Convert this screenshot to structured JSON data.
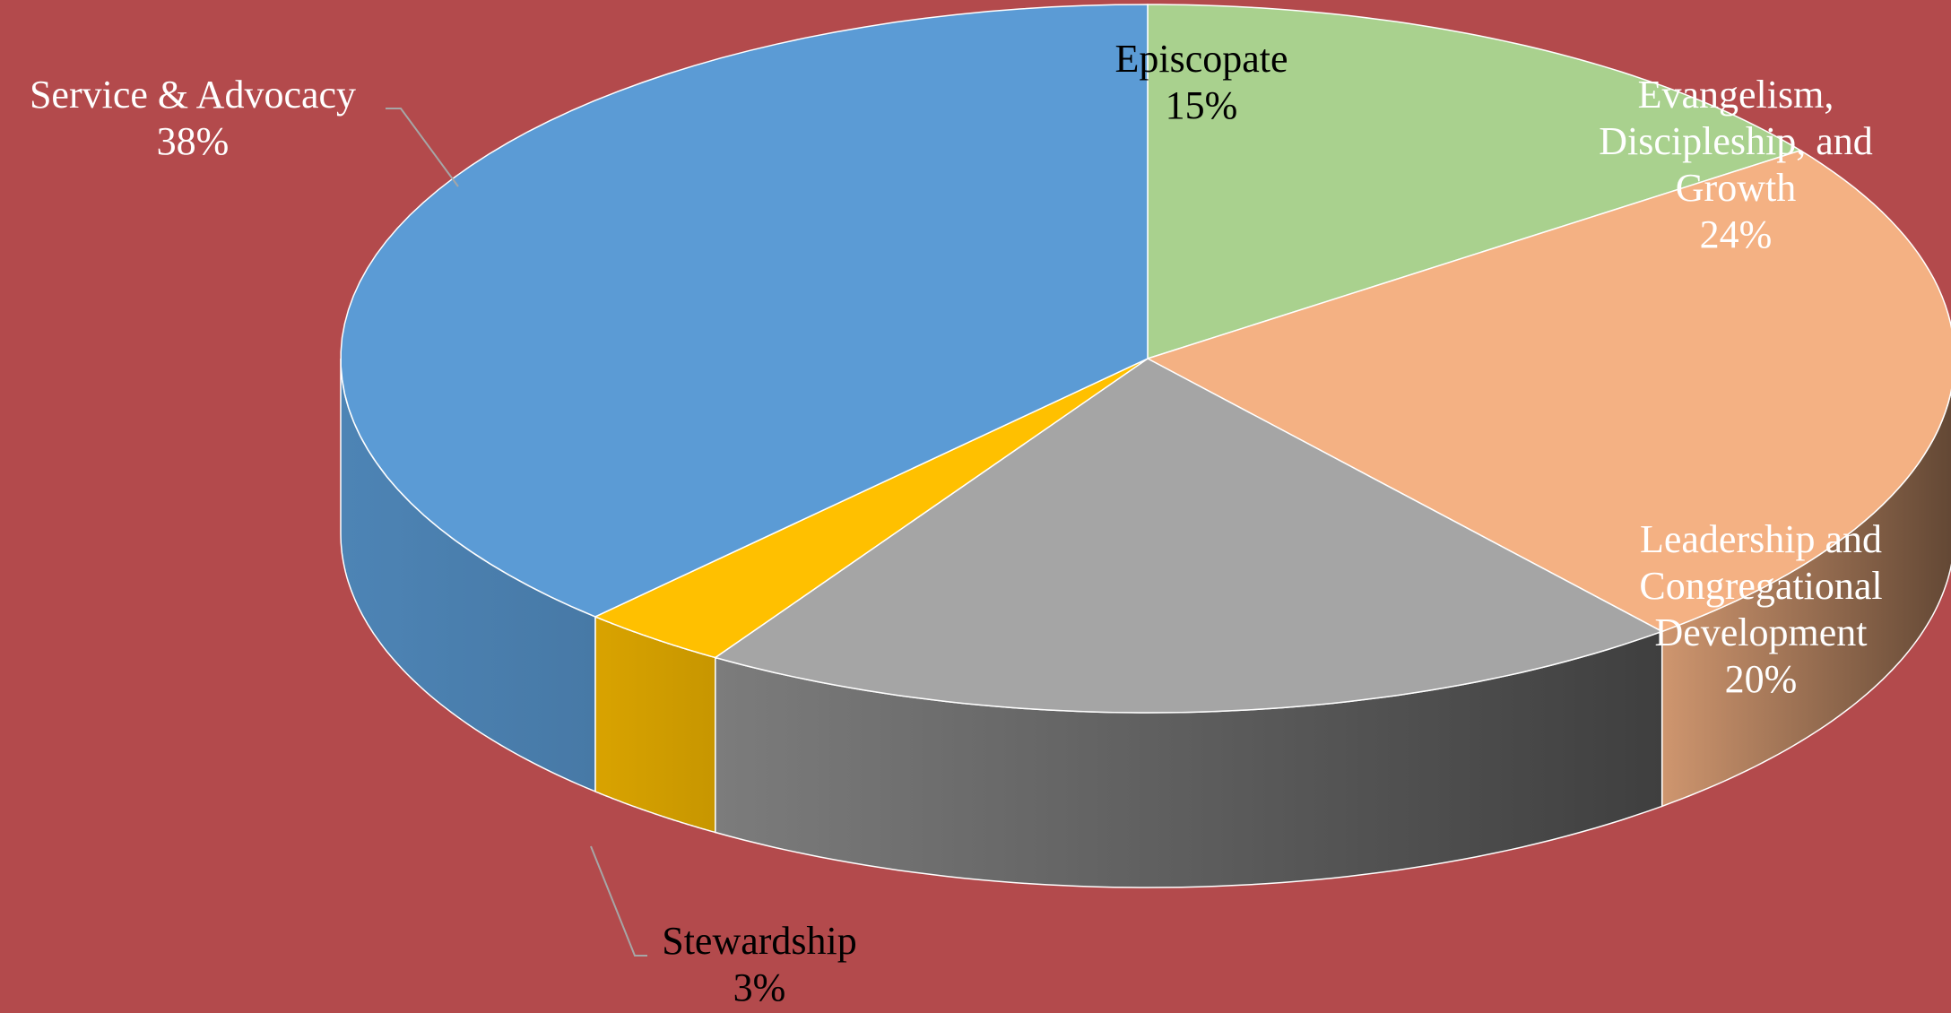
{
  "chart_data": {
    "type": "pie",
    "categories": [
      "Episcopate",
      "Evangelism, Discipleship, and Growth",
      "Leadership and Congregational Development",
      "Stewardship",
      "Service & Advocacy"
    ],
    "values": [
      15,
      24,
      20,
      3,
      38
    ],
    "value_labels": [
      "15%",
      "24%",
      "20%",
      "3%",
      "38%"
    ],
    "colors": [
      "#a9d18e",
      "#f4b183",
      "#a5a5a5",
      "#ffc000",
      "#5b9bd5"
    ]
  }
}
